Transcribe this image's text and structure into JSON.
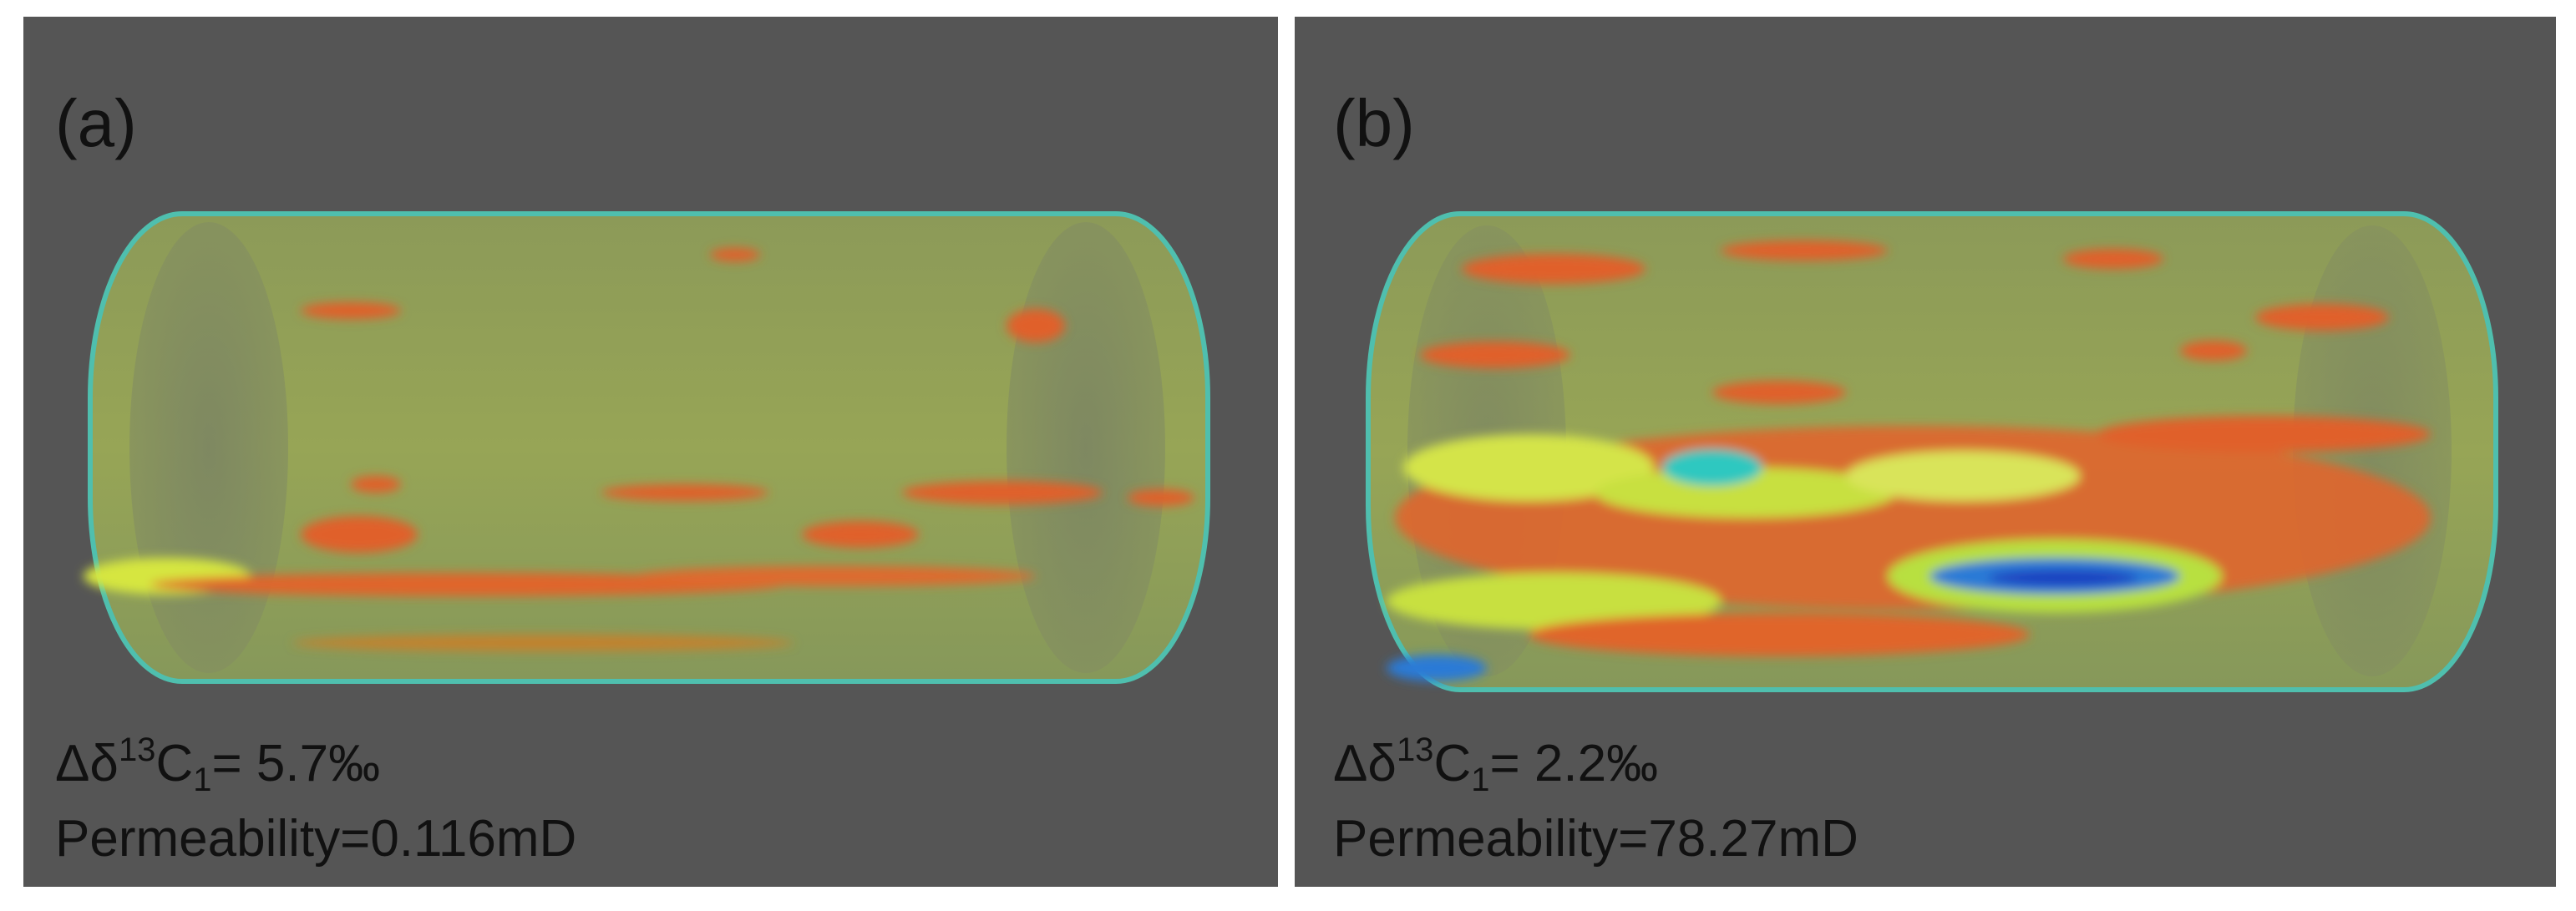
{
  "panels": [
    {
      "label": "(a)",
      "isotope": {
        "prefix": "Δδ",
        "sup": "13",
        "element": "C",
        "sub": "1",
        "value": "= 5.7‰"
      },
      "permeability": "Permeability=0.116mD"
    },
    {
      "label": "(b)",
      "isotope": {
        "prefix": "Δδ",
        "sup": "13",
        "element": "C",
        "sub": "1",
        "value": "= 2.2‰"
      },
      "permeability": "Permeability=78.27mD"
    }
  ]
}
